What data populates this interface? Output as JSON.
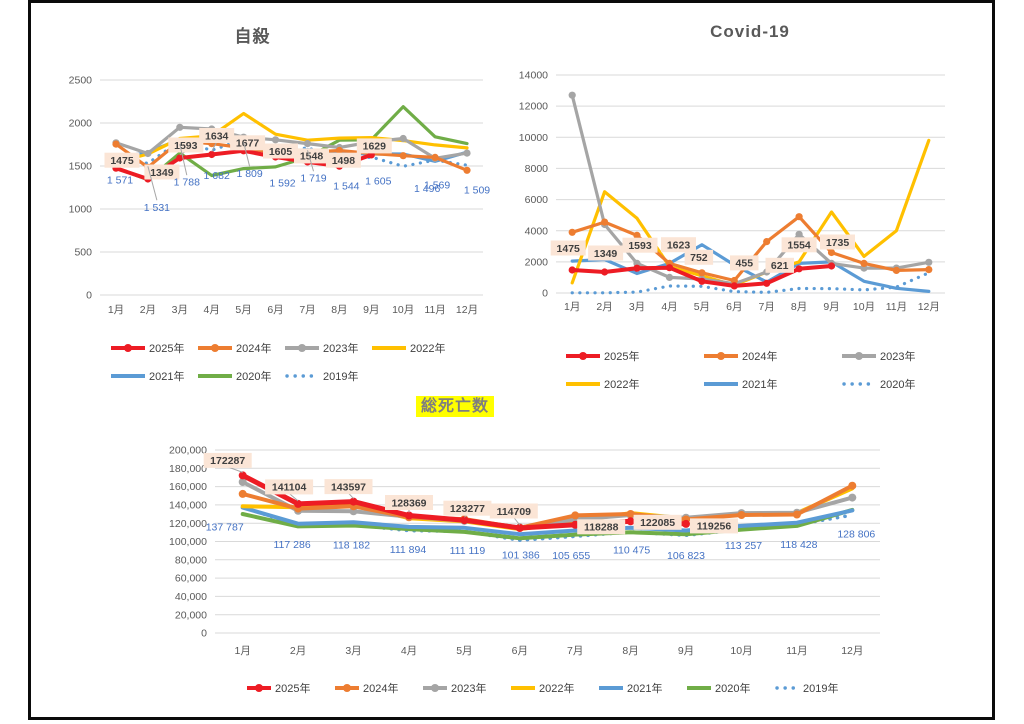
{
  "page": {
    "background": "#ffffff"
  },
  "chart_data": [
    {
      "id": "suicide",
      "type": "line",
      "title": "自殺",
      "categories": [
        "1月",
        "2月",
        "3月",
        "4月",
        "5月",
        "6月",
        "7月",
        "8月",
        "9月",
        "10月",
        "11月",
        "12月"
      ],
      "ylim": [
        0,
        2500
      ],
      "yticks": [
        "0",
        "500",
        "1000",
        "1500",
        "2000",
        "2500"
      ],
      "grid": true,
      "legend_position": "bottom",
      "legend_rows": [
        [
          "2025年",
          "2024年",
          "2023年",
          "2022年"
        ],
        [
          "2021年",
          "2020年",
          "2019年"
        ]
      ],
      "series": [
        {
          "name": "2025年",
          "color": "#ED1C24",
          "marker": true,
          "dotted": false,
          "values": [
            1475,
            1349,
            1593,
            1634,
            1677,
            1605,
            1548,
            1498,
            1629
          ],
          "label_style": "peach",
          "label_texts": [
            "1475",
            "1349",
            "1593",
            "1634",
            "1677",
            "1605",
            "1548",
            "1498",
            "1629"
          ]
        },
        {
          "name": "2024年",
          "color": "#ED7D31",
          "marker": true,
          "dotted": false,
          "values": [
            1755,
            1485,
            1790,
            1760,
            1710,
            1655,
            1660,
            1680,
            1645,
            1620,
            1600,
            1450
          ]
        },
        {
          "name": "2023年",
          "color": "#A5A5A5",
          "marker": true,
          "dotted": false,
          "values": [
            1770,
            1645,
            1950,
            1930,
            1835,
            1805,
            1760,
            1715,
            1780,
            1820,
            1590,
            1650
          ]
        },
        {
          "name": "2022年",
          "color": "#FFC000",
          "marker": false,
          "dotted": false,
          "values": [
            1540,
            1640,
            1820,
            1850,
            2110,
            1870,
            1800,
            1825,
            1830,
            1795,
            1745,
            1710
          ]
        },
        {
          "name": "2021年",
          "color": "#5B9BD5",
          "marker": false,
          "dotted": false,
          "values": [
            1590,
            1660,
            1810,
            1800,
            1810,
            1630,
            1690,
            1650,
            1640,
            1640,
            1555,
            1660
          ]
        },
        {
          "name": "2020年",
          "color": "#70AD47",
          "marker": false,
          "dotted": false,
          "values": [
            1480,
            1340,
            1650,
            1390,
            1470,
            1490,
            1600,
            1800,
            1805,
            2190,
            1840,
            1760
          ]
        },
        {
          "name": "2019年",
          "color": "#5B9BD5",
          "marker": false,
          "dotted": true,
          "values": [
            1571,
            1531,
            1788,
            1682,
            1809,
            1592,
            1719,
            1544,
            1605,
            1496,
            1569,
            1509
          ],
          "label_style": "blue",
          "label_texts": [
            "1 571",
            "1 531",
            "1 788",
            "1 682",
            "1 809",
            "1 592",
            "1 719",
            "1 544",
            "1 605",
            "1 496",
            "1 569",
            "1 509"
          ]
        }
      ]
    },
    {
      "id": "covid",
      "type": "line",
      "title": "Covid-19",
      "categories": [
        "1月",
        "2月",
        "3月",
        "4月",
        "5月",
        "6月",
        "7月",
        "8月",
        "9月",
        "10月",
        "11月",
        "12月"
      ],
      "ylim": [
        0,
        14000
      ],
      "yticks": [
        "0",
        "2000",
        "4000",
        "6000",
        "8000",
        "10000",
        "12000",
        "14000"
      ],
      "grid": true,
      "legend_position": "bottom",
      "legend_rows": [
        [
          "2025年",
          "2024年",
          "2023年"
        ],
        [
          "2022年",
          "2021年",
          "2020年"
        ]
      ],
      "series": [
        {
          "name": "2025年",
          "color": "#ED1C24",
          "marker": true,
          "dotted": false,
          "values": [
            1475,
            1349,
            1593,
            1623,
            752,
            455,
            621,
            1554,
            1735
          ],
          "label_style": "peach",
          "label_texts": [
            "1475",
            "1349",
            "1593",
            "1623",
            "752",
            "455",
            "621",
            "1554",
            "1735"
          ]
        },
        {
          "name": "2024年",
          "color": "#ED7D31",
          "marker": true,
          "dotted": false,
          "values": [
            3900,
            4550,
            3700,
            1900,
            1300,
            800,
            3300,
            4900,
            2600,
            1900,
            1450,
            1500
          ]
        },
        {
          "name": "2023年",
          "color": "#A5A5A5",
          "marker": true,
          "dotted": false,
          "values": [
            12700,
            4400,
            1900,
            1000,
            900,
            600,
            1350,
            3770,
            1900,
            1600,
            1600,
            1970
          ]
        },
        {
          "name": "2022年",
          "color": "#FFC000",
          "marker": false,
          "dotted": false,
          "values": [
            650,
            6500,
            4800,
            1700,
            1100,
            500,
            1350,
            2000,
            5200,
            2350,
            4000,
            9800
          ]
        },
        {
          "name": "2021年",
          "color": "#5B9BD5",
          "marker": false,
          "dotted": false,
          "values": [
            2050,
            2150,
            1250,
            1900,
            3100,
            1800,
            700,
            1900,
            2000,
            750,
            300,
            100
          ]
        },
        {
          "name": "2020年",
          "color": "#5B9BD5",
          "marker": false,
          "dotted": true,
          "values": [
            10,
            15,
            60,
            450,
            430,
            90,
            40,
            290,
            280,
            200,
            380,
            1300
          ]
        }
      ]
    },
    {
      "id": "total_deaths",
      "type": "line",
      "title": "総死亡数",
      "title_highlight": "#FFFF00",
      "categories": [
        "1月",
        "2月",
        "3月",
        "4月",
        "5月",
        "6月",
        "7月",
        "8月",
        "9月",
        "10月",
        "11月",
        "12月"
      ],
      "ylim": [
        0,
        200000
      ],
      "yticks": [
        "0",
        "20,000",
        "40,000",
        "60,000",
        "80,000",
        "100,000",
        "120,000",
        "140,000",
        "160,000",
        "180,000",
        "200,000"
      ],
      "grid": true,
      "legend_position": "bottom",
      "legend_rows": [
        [
          "2025年",
          "2024年",
          "2023年",
          "2022年",
          "2021年",
          "2020年",
          "2019年"
        ]
      ],
      "series": [
        {
          "name": "2025年",
          "color": "#ED1C24",
          "marker": true,
          "dotted": false,
          "values": [
            172287,
            141104,
            143597,
            128369,
            123277,
            114709,
            118288,
            122085,
            119256
          ],
          "label_style": "peach",
          "label_texts": [
            "172287",
            "141104",
            "143597",
            "128369",
            "123277",
            "114709",
            "118288",
            "122085",
            "119256"
          ]
        },
        {
          "name": "2024年",
          "color": "#ED7D31",
          "marker": true,
          "dotted": false,
          "values": [
            152000,
            136000,
            138500,
            126500,
            124500,
            115000,
            128500,
            130000,
            124000,
            129000,
            129500,
            161000
          ]
        },
        {
          "name": "2023年",
          "color": "#A5A5A5",
          "marker": true,
          "dotted": false,
          "values": [
            165000,
            133500,
            133000,
            127000,
            122500,
            115500,
            124000,
            129000,
            126000,
            131000,
            131500,
            148000
          ]
        },
        {
          "name": "2022年",
          "color": "#FFC000",
          "marker": false,
          "dotted": false,
          "values": [
            138500,
            137500,
            140000,
            125500,
            122000,
            113500,
            122000,
            131000,
            125000,
            130500,
            131000,
            158000
          ]
        },
        {
          "name": "2021年",
          "color": "#5B9BD5",
          "marker": false,
          "dotted": false,
          "values": [
            137000,
            119500,
            121000,
            116000,
            115000,
            108000,
            112000,
            115000,
            112000,
            117000,
            120500,
            134000
          ]
        },
        {
          "name": "2020年",
          "color": "#70AD47",
          "marker": false,
          "dotted": false,
          "values": [
            130000,
            116500,
            117500,
            113500,
            110500,
            103500,
            107500,
            110000,
            108000,
            113000,
            117000,
            134500
          ]
        },
        {
          "name": "2019年",
          "color": "#5B9BD5",
          "marker": false,
          "dotted": true,
          "values": [
            137787,
            117286,
            118182,
            111894,
            111119,
            101386,
            105655,
            110475,
            106823,
            113257,
            118428,
            128806
          ],
          "label_style": "blue",
          "label_texts": [
            "137 787",
            "117 286",
            "118 182",
            "111 894",
            "111 119",
            "101 386",
            "105 655",
            "110 475",
            "106 823",
            "113 257",
            "118 428",
            "128 806"
          ]
        }
      ]
    }
  ],
  "colors": {
    "label_box": "#FBE5D6",
    "blue_label_text": "#4472C4",
    "gridline": "#D9D9D9",
    "axis_text": "#595959",
    "frame": "#0b0b0b"
  }
}
